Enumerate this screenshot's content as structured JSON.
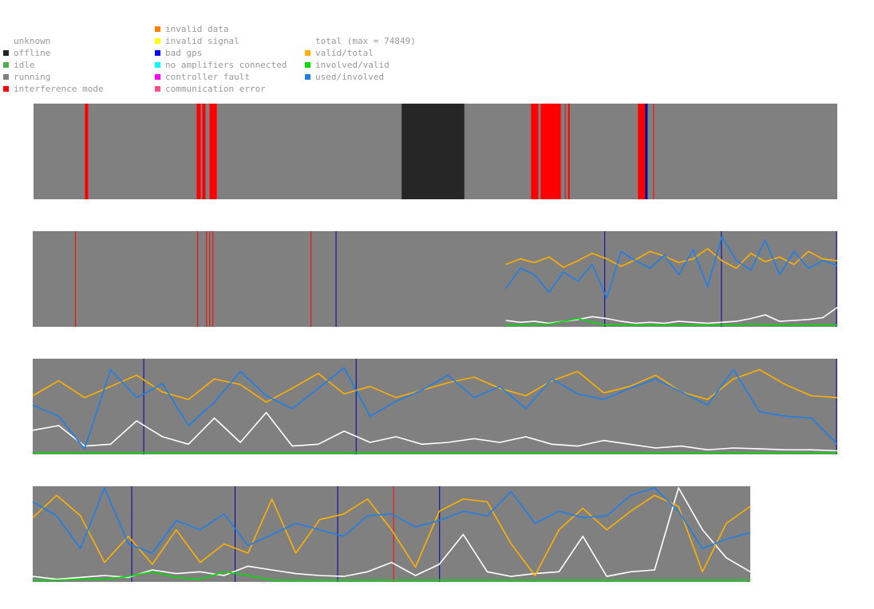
{
  "legend": {
    "status": [
      {
        "label": "unknown",
        "color": "#ffffff"
      },
      {
        "label": "offline",
        "color": "#222222"
      },
      {
        "label": "idle",
        "color": "#4caf50"
      },
      {
        "label": "running",
        "color": "#808080"
      },
      {
        "label": "interference mode",
        "color": "#ff0000"
      }
    ],
    "errors": [
      {
        "label": "invalid data",
        "color": "#ff7f00"
      },
      {
        "label": "invalid signal",
        "color": "#ffff00"
      },
      {
        "label": "bad gps",
        "color": "#0000ff"
      },
      {
        "label": "no amplifiers connected",
        "color": "#00ffff"
      },
      {
        "label": "controller fault",
        "color": "#ff00ff"
      },
      {
        "label": "communication error",
        "color": "#ff4c8c"
      }
    ],
    "series": [
      {
        "label": "total (max = 74849)",
        "color": "#ffffff"
      },
      {
        "label": "valid/total",
        "color": "#ffb000"
      },
      {
        "label": "involved/valid",
        "color": "#00dd00"
      },
      {
        "label": "used/involved",
        "color": "#1e7ee8"
      }
    ]
  },
  "chart_data": [
    {
      "type": "area",
      "panel": "status-strip",
      "x_range": [
        0,
        1000
      ],
      "segments": [
        {
          "from": 0,
          "to": 1000,
          "state": "running"
        },
        {
          "from": 64,
          "to": 68,
          "state": "interference mode"
        },
        {
          "from": 203,
          "to": 208,
          "state": "interference mode"
        },
        {
          "from": 210,
          "to": 214,
          "state": "interference mode"
        },
        {
          "from": 219,
          "to": 228,
          "state": "interference mode"
        },
        {
          "from": 458,
          "to": 536,
          "state": "offline"
        },
        {
          "from": 619,
          "to": 628,
          "state": "interference mode"
        },
        {
          "from": 631,
          "to": 656,
          "state": "interference mode"
        },
        {
          "from": 661,
          "to": 662,
          "state": "interference mode"
        },
        {
          "from": 665,
          "to": 667,
          "state": "interference mode"
        },
        {
          "from": 752,
          "to": 761,
          "state": "interference mode"
        },
        {
          "from": 761,
          "to": 764,
          "state": "bad gps"
        },
        {
          "from": 771,
          "to": 772,
          "state": "interference mode"
        }
      ]
    },
    {
      "type": "line",
      "panel": "row-1",
      "x_range": [
        0,
        1000
      ],
      "ylim": [
        0,
        1
      ],
      "data_start": 588,
      "markers": [
        {
          "x": 53,
          "kind": "interference mode"
        },
        {
          "x": 205,
          "kind": "interference mode"
        },
        {
          "x": 216,
          "kind": "interference mode"
        },
        {
          "x": 220,
          "kind": "interference mode"
        },
        {
          "x": 224,
          "kind": "interference mode"
        },
        {
          "x": 346,
          "kind": "interference mode"
        },
        {
          "x": 377,
          "kind": "bad gps"
        },
        {
          "x": 711,
          "kind": "bad gps"
        },
        {
          "x": 856,
          "kind": "bad gps"
        },
        {
          "x": 1002,
          "kind": "bad gps"
        }
      ],
      "series": [
        {
          "name": "valid/total",
          "values": [
            0.66,
            0.72,
            0.68,
            0.74,
            0.63,
            0.7,
            0.78,
            0.72,
            0.64,
            0.71,
            0.8,
            0.75,
            0.68,
            0.72,
            0.83,
            0.7,
            0.62,
            0.78,
            0.69,
            0.74,
            0.66,
            0.8,
            0.72,
            0.7
          ]
        },
        {
          "name": "used/involved",
          "values": [
            0.4,
            0.62,
            0.55,
            0.36,
            0.58,
            0.48,
            0.66,
            0.3,
            0.8,
            0.7,
            0.62,
            0.76,
            0.55,
            0.82,
            0.42,
            0.96,
            0.7,
            0.6,
            0.92,
            0.55,
            0.8,
            0.62,
            0.7,
            0.65
          ]
        },
        {
          "name": "total",
          "values": [
            0.06,
            0.04,
            0.05,
            0.03,
            0.05,
            0.07,
            0.1,
            0.08,
            0.05,
            0.03,
            0.04,
            0.03,
            0.05,
            0.04,
            0.03,
            0.04,
            0.05,
            0.08,
            0.12,
            0.05,
            0.06,
            0.07,
            0.09,
            0.2
          ]
        },
        {
          "name": "involved/valid",
          "values": [
            0.01,
            0.01,
            0.02,
            0.02,
            0.05,
            0.08,
            0.04,
            0.01,
            0.01,
            0.01,
            0.01,
            0.01,
            0.01,
            0.01,
            0.01,
            0.01,
            0.01,
            0.02,
            0.01,
            0.01,
            0.01,
            0.01,
            0.01,
            0.01
          ]
        }
      ]
    },
    {
      "type": "line",
      "panel": "row-2",
      "x_range": [
        0,
        1000
      ],
      "ylim": [
        0,
        1
      ],
      "data_start": 0,
      "markers": [
        {
          "x": 138,
          "kind": "bad gps"
        },
        {
          "x": 402,
          "kind": "bad gps"
        },
        {
          "x": 1002,
          "kind": "bad gps"
        }
      ],
      "series": [
        {
          "name": "valid/total",
          "values": [
            0.62,
            0.78,
            0.6,
            0.72,
            0.84,
            0.66,
            0.58,
            0.8,
            0.74,
            0.55,
            0.7,
            0.86,
            0.64,
            0.72,
            0.6,
            0.68,
            0.76,
            0.82,
            0.7,
            0.62,
            0.78,
            0.88,
            0.65,
            0.72,
            0.84,
            0.66,
            0.58,
            0.8,
            0.9,
            0.74,
            0.62,
            0.6
          ]
        },
        {
          "name": "used/involved",
          "values": [
            0.52,
            0.4,
            0.05,
            0.9,
            0.6,
            0.75,
            0.3,
            0.55,
            0.88,
            0.62,
            0.48,
            0.7,
            0.92,
            0.4,
            0.56,
            0.68,
            0.84,
            0.6,
            0.72,
            0.48,
            0.8,
            0.64,
            0.58,
            0.7,
            0.8,
            0.66,
            0.52,
            0.9,
            0.45,
            0.4,
            0.38,
            0.1
          ]
        },
        {
          "name": "total",
          "values": [
            0.25,
            0.3,
            0.08,
            0.1,
            0.35,
            0.18,
            0.1,
            0.38,
            0.12,
            0.44,
            0.08,
            0.1,
            0.24,
            0.12,
            0.18,
            0.1,
            0.12,
            0.16,
            0.12,
            0.18,
            0.1,
            0.08,
            0.14,
            0.1,
            0.06,
            0.08,
            0.04,
            0.06,
            0.05,
            0.04,
            0.04,
            0.03
          ]
        },
        {
          "name": "involved/valid",
          "values": [
            0.01,
            0.01,
            0.01,
            0.01,
            0.01,
            0.01,
            0.01,
            0.01,
            0.01,
            0.01,
            0.01,
            0.01,
            0.01,
            0.01,
            0.01,
            0.01,
            0.01,
            0.01,
            0.01,
            0.01,
            0.01,
            0.01,
            0.01,
            0.01,
            0.01,
            0.01,
            0.01,
            0.01,
            0.01,
            0.01,
            0.01,
            0.01
          ]
        }
      ]
    },
    {
      "type": "line",
      "panel": "row-3",
      "x_range": [
        0,
        1000
      ],
      "ylim": [
        0,
        1
      ],
      "data_start": 0,
      "markers": [
        {
          "x": 138,
          "kind": "bad gps"
        },
        {
          "x": 282,
          "kind": "bad gps"
        },
        {
          "x": 425,
          "kind": "bad gps"
        },
        {
          "x": 503,
          "kind": "interference mode"
        },
        {
          "x": 567,
          "kind": "bad gps"
        }
      ],
      "series": [
        {
          "name": "valid/total",
          "values": [
            0.68,
            0.92,
            0.7,
            0.2,
            0.48,
            0.18,
            0.55,
            0.2,
            0.4,
            0.3,
            0.88,
            0.3,
            0.66,
            0.72,
            0.88,
            0.55,
            0.15,
            0.75,
            0.88,
            0.85,
            0.4,
            0.06,
            0.55,
            0.78,
            0.55,
            0.75,
            0.92,
            0.8,
            0.1,
            0.62,
            0.8
          ]
        },
        {
          "name": "used/involved",
          "values": [
            0.85,
            0.7,
            0.35,
            1.0,
            0.4,
            0.3,
            0.65,
            0.55,
            0.72,
            0.38,
            0.5,
            0.62,
            0.55,
            0.48,
            0.7,
            0.72,
            0.58,
            0.65,
            0.75,
            0.7,
            0.96,
            0.62,
            0.75,
            0.68,
            0.7,
            0.92,
            1.0,
            0.75,
            0.35,
            0.45,
            0.52
          ]
        },
        {
          "name": "total",
          "values": [
            0.05,
            0.02,
            0.04,
            0.06,
            0.04,
            0.12,
            0.08,
            0.1,
            0.06,
            0.16,
            0.12,
            0.08,
            0.06,
            0.05,
            0.1,
            0.2,
            0.06,
            0.18,
            0.5,
            0.1,
            0.05,
            0.08,
            0.1,
            0.48,
            0.05,
            0.1,
            0.12,
            1.0,
            0.55,
            0.25,
            0.1
          ]
        },
        {
          "name": "involved/valid",
          "values": [
            0.01,
            0.01,
            0.02,
            0.02,
            0.05,
            0.1,
            0.04,
            0.02,
            0.1,
            0.06,
            0.01,
            0.01,
            0.01,
            0.01,
            0.01,
            0.01,
            0.01,
            0.01,
            0.01,
            0.01,
            0.01,
            0.01,
            0.01,
            0.01,
            0.01,
            0.01,
            0.01,
            0.01,
            0.01,
            0.01,
            0.01
          ]
        }
      ]
    }
  ],
  "colors": {
    "running": "#808080",
    "offline": "#262626",
    "interference": "#ff0000",
    "bad_gps": "#00009e",
    "valid_total": "#ffb000",
    "used_involved": "#1e7ee8",
    "total": "#ffffff",
    "involved_valid": "#00dd00"
  }
}
